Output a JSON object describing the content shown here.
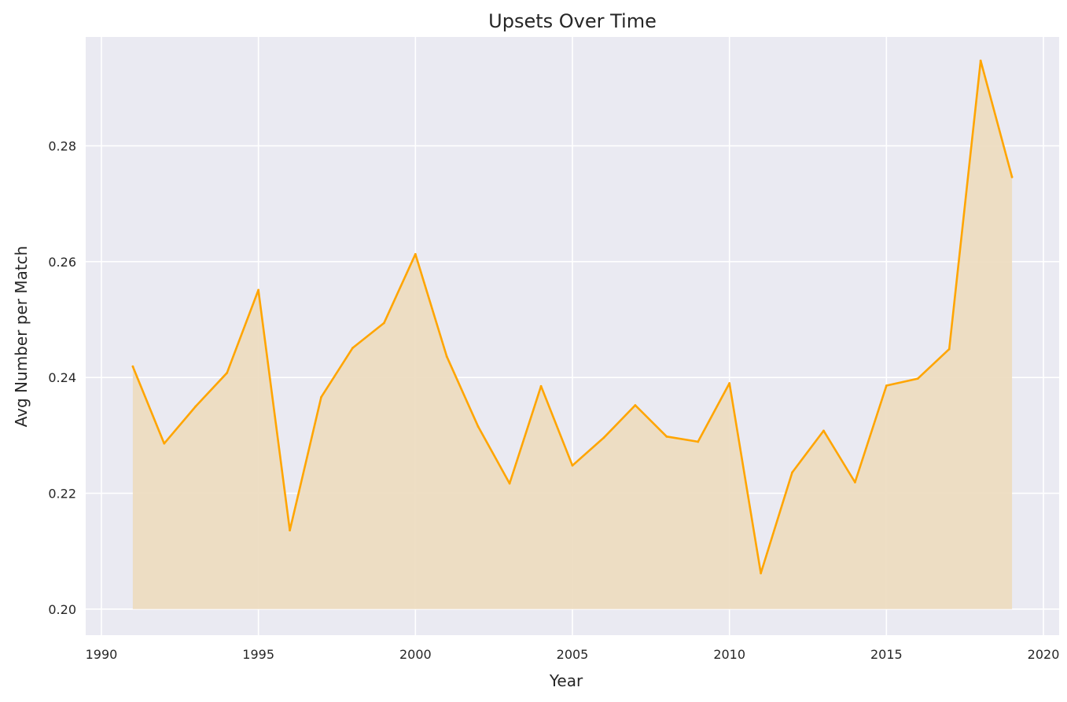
{
  "chart_data": {
    "type": "area",
    "title": "Upsets Over Time",
    "xlabel": "Year",
    "ylabel": "Avg Number per Match",
    "xlim": [
      1989.5,
      2020.5
    ],
    "ylim": [
      0.1955,
      0.2988
    ],
    "x_ticks": [
      1990,
      1995,
      2000,
      2005,
      2010,
      2015,
      2020
    ],
    "y_ticks": [
      0.2,
      0.22,
      0.24,
      0.26,
      0.28
    ],
    "x_tick_labels": [
      "1990",
      "1995",
      "2000",
      "2005",
      "2010",
      "2015",
      "2020"
    ],
    "y_tick_labels": [
      "0.20",
      "0.22",
      "0.24",
      "0.26",
      "0.28"
    ],
    "fill_baseline": 0.2,
    "grid": true,
    "series": [
      {
        "x": [
          1991,
          1992,
          1993,
          1994,
          1995,
          1996,
          1997,
          1998,
          1999,
          2000,
          2001,
          2002,
          2003,
          2004,
          2005,
          2006,
          2007,
          2008,
          2009,
          2010,
          2011,
          2012,
          2013,
          2014,
          2015,
          2016,
          2017,
          2018,
          2019
        ],
        "values": [
          0.2419,
          0.2286,
          0.235,
          0.2408,
          0.2551,
          0.2136,
          0.2366,
          0.2451,
          0.2494,
          0.2613,
          0.2436,
          0.2315,
          0.2217,
          0.2385,
          0.2248,
          0.2296,
          0.2352,
          0.2298,
          0.2289,
          0.239,
          0.2062,
          0.2236,
          0.2308,
          0.2219,
          0.2386,
          0.2398,
          0.2449,
          0.2947,
          0.2746
        ]
      }
    ],
    "colors": {
      "line": "#FFA500",
      "fill": "#EDDBBF",
      "plot_background": "#EAEAF2",
      "grid": "#FFFFFF",
      "text": "#262626"
    }
  }
}
